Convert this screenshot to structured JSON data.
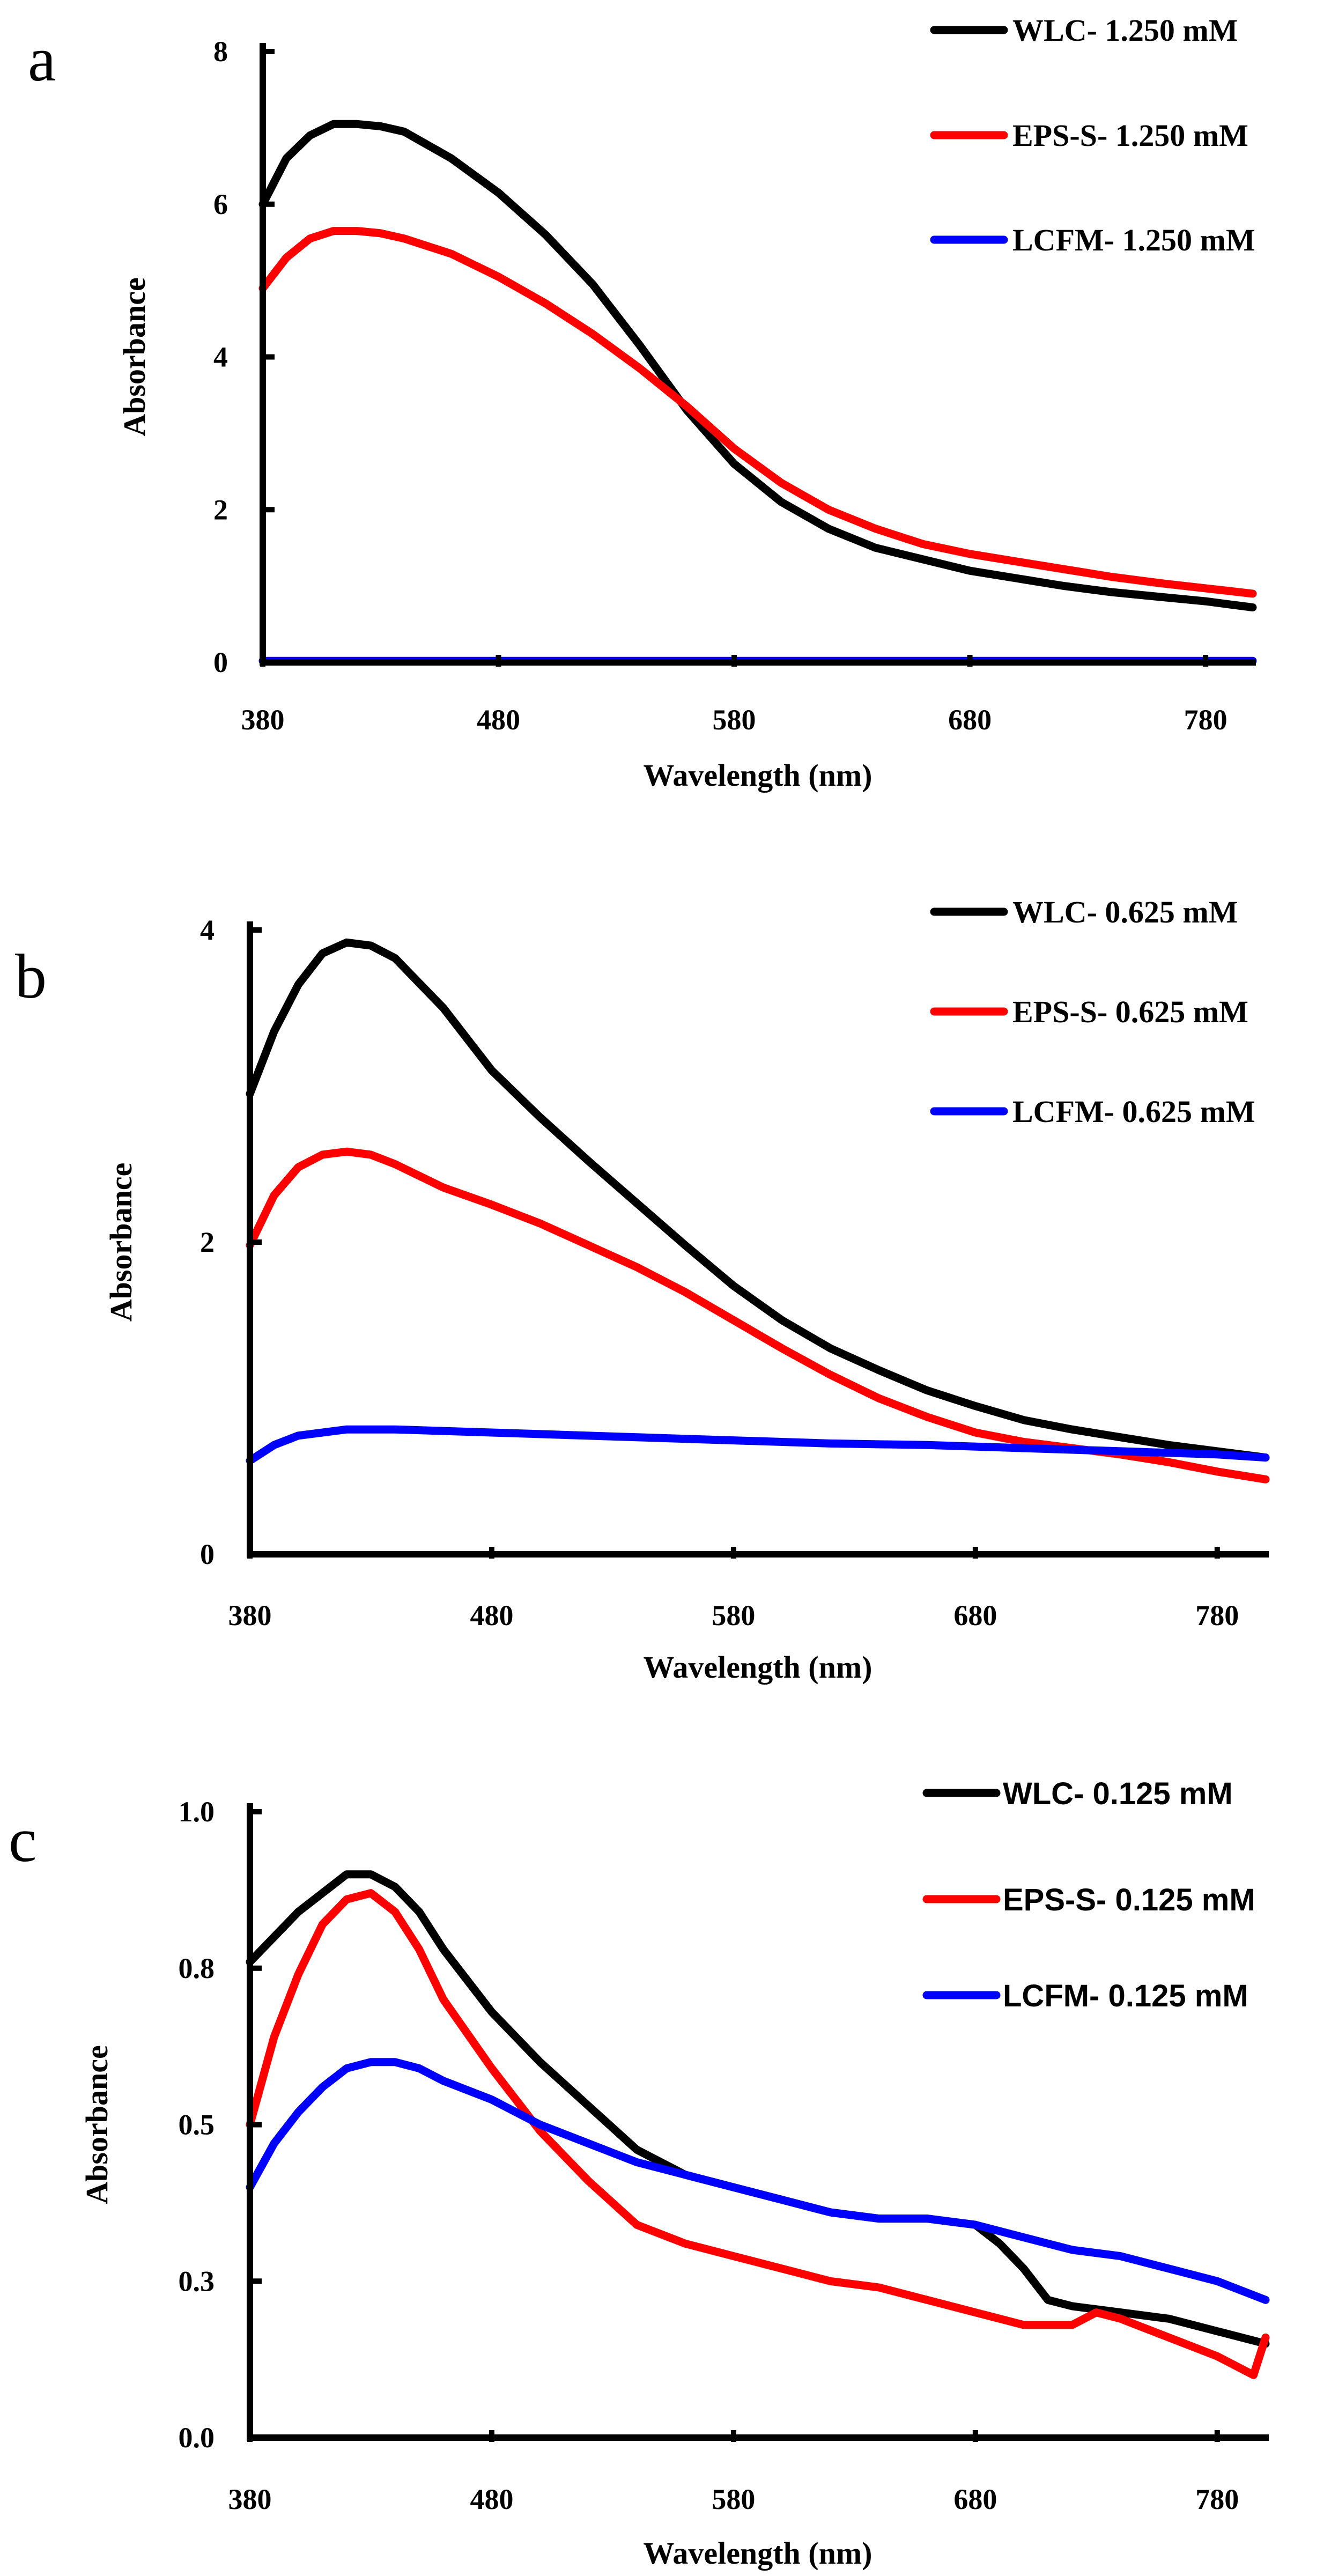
{
  "colors": {
    "WLC": "#000000",
    "EPS-S": "#ff0000",
    "LCFM": "#0000ff"
  },
  "chart_data": [
    {
      "type": "line",
      "panel": "a",
      "xlabel": "Wavelength (nm)",
      "ylabel": "Absorbance",
      "xlim": [
        380,
        800
      ],
      "ylim": [
        0,
        8
      ],
      "xticks": [
        380,
        480,
        580,
        680,
        780
      ],
      "yticks": [
        0,
        2,
        4,
        6,
        8
      ],
      "xtick_labels": [
        "380",
        "480",
        "580",
        "680",
        "780"
      ],
      "ytick_labels": [
        "0",
        "2",
        "4",
        "6",
        "8"
      ],
      "series": [
        {
          "name": "WLC- 1.250 mM",
          "key": "WLC",
          "x": [
            380,
            390,
            400,
            410,
            420,
            430,
            440,
            460,
            480,
            500,
            520,
            540,
            560,
            580,
            600,
            620,
            640,
            660,
            680,
            700,
            720,
            740,
            760,
            780,
            800
          ],
          "y": [
            6.0,
            6.6,
            6.9,
            7.05,
            7.05,
            7.02,
            6.95,
            6.6,
            6.15,
            5.6,
            4.95,
            4.15,
            3.3,
            2.6,
            2.1,
            1.75,
            1.5,
            1.35,
            1.2,
            1.1,
            1.0,
            0.92,
            0.86,
            0.8,
            0.72
          ]
        },
        {
          "name": "EPS-S- 1.250 mM",
          "key": "EPS-S",
          "x": [
            380,
            390,
            400,
            410,
            420,
            430,
            440,
            460,
            480,
            500,
            520,
            540,
            560,
            580,
            600,
            620,
            640,
            660,
            680,
            700,
            720,
            740,
            760,
            780,
            800
          ],
          "y": [
            4.9,
            5.3,
            5.55,
            5.65,
            5.65,
            5.62,
            5.55,
            5.35,
            5.05,
            4.7,
            4.3,
            3.85,
            3.35,
            2.8,
            2.35,
            2.0,
            1.75,
            1.55,
            1.42,
            1.32,
            1.22,
            1.12,
            1.04,
            0.97,
            0.9
          ]
        },
        {
          "name": "LCFM- 1.250 mM",
          "key": "LCFM",
          "x": [
            380,
            480,
            580,
            680,
            780,
            800
          ],
          "y": [
            0.02,
            0.02,
            0.02,
            0.02,
            0.02,
            0.02
          ]
        }
      ]
    },
    {
      "type": "line",
      "panel": "b",
      "xlabel": "Wavelength (nm)",
      "ylabel": "Absorbance",
      "xlim": [
        380,
        800
      ],
      "ylim": [
        0,
        4
      ],
      "xticks": [
        380,
        480,
        580,
        680,
        780
      ],
      "yticks": [
        0,
        2,
        4
      ],
      "xtick_labels": [
        "380",
        "480",
        "580",
        "680",
        "780"
      ],
      "ytick_labels": [
        "0",
        "2",
        "4"
      ],
      "series": [
        {
          "name": "WLC- 0.625 mM",
          "key": "WLC",
          "x": [
            380,
            390,
            400,
            410,
            420,
            430,
            440,
            460,
            480,
            500,
            520,
            540,
            560,
            580,
            600,
            620,
            640,
            660,
            680,
            700,
            720,
            740,
            760,
            780,
            800
          ],
          "y": [
            2.95,
            3.35,
            3.65,
            3.85,
            3.92,
            3.9,
            3.82,
            3.5,
            3.1,
            2.8,
            2.52,
            2.25,
            1.98,
            1.72,
            1.5,
            1.32,
            1.18,
            1.05,
            0.95,
            0.86,
            0.8,
            0.75,
            0.7,
            0.66,
            0.62
          ]
        },
        {
          "name": "EPS-S- 0.625 mM",
          "key": "EPS-S",
          "x": [
            380,
            390,
            400,
            410,
            420,
            430,
            440,
            460,
            480,
            500,
            520,
            540,
            560,
            580,
            600,
            620,
            640,
            660,
            680,
            700,
            720,
            740,
            760,
            780,
            800
          ],
          "y": [
            1.98,
            2.3,
            2.48,
            2.56,
            2.58,
            2.56,
            2.5,
            2.35,
            2.24,
            2.12,
            1.98,
            1.84,
            1.68,
            1.5,
            1.32,
            1.15,
            1.0,
            0.88,
            0.78,
            0.72,
            0.68,
            0.64,
            0.59,
            0.53,
            0.48
          ]
        },
        {
          "name": "LCFM- 0.625 mM",
          "key": "LCFM",
          "x": [
            380,
            390,
            400,
            420,
            440,
            460,
            480,
            500,
            540,
            580,
            620,
            660,
            700,
            740,
            780,
            800
          ],
          "y": [
            0.6,
            0.7,
            0.76,
            0.8,
            0.8,
            0.79,
            0.78,
            0.77,
            0.75,
            0.73,
            0.71,
            0.7,
            0.68,
            0.66,
            0.64,
            0.62
          ]
        }
      ]
    },
    {
      "type": "line",
      "panel": "c",
      "xlabel": "Wavelength (nm)",
      "ylabel": "Absorbance",
      "xlim": [
        380,
        800
      ],
      "ylim": [
        0,
        1.0
      ],
      "xticks": [
        380,
        480,
        580,
        680,
        780
      ],
      "yticks": [
        0.0,
        0.25,
        0.5,
        0.75,
        1.0
      ],
      "xtick_labels": [
        "380",
        "480",
        "580",
        "680",
        "780"
      ],
      "ytick_labels": [
        "0.0",
        "0.3",
        "0.5",
        "0.8",
        "1.0"
      ],
      "series": [
        {
          "name": "WLC- 0.125 mM",
          "key": "WLC",
          "x": [
            380,
            390,
            400,
            410,
            420,
            430,
            440,
            450,
            460,
            480,
            500,
            520,
            540,
            560,
            580,
            600,
            620,
            640,
            660,
            680,
            690,
            700,
            710,
            720,
            740,
            760,
            780,
            800
          ],
          "y": [
            0.76,
            0.8,
            0.84,
            0.87,
            0.9,
            0.9,
            0.88,
            0.84,
            0.78,
            0.68,
            0.6,
            0.53,
            0.46,
            0.42,
            0.4,
            0.38,
            0.36,
            0.35,
            0.35,
            0.34,
            0.31,
            0.27,
            0.22,
            0.21,
            0.2,
            0.19,
            0.17,
            0.15
          ]
        },
        {
          "name": "EPS-S- 0.125 mM",
          "key": "EPS-S",
          "x": [
            380,
            390,
            400,
            410,
            420,
            430,
            440,
            450,
            460,
            480,
            500,
            520,
            540,
            560,
            580,
            600,
            620,
            640,
            660,
            680,
            700,
            720,
            730,
            740,
            760,
            780,
            795,
            800
          ],
          "y": [
            0.5,
            0.64,
            0.74,
            0.82,
            0.86,
            0.87,
            0.84,
            0.78,
            0.7,
            0.59,
            0.49,
            0.41,
            0.34,
            0.31,
            0.29,
            0.27,
            0.25,
            0.24,
            0.22,
            0.2,
            0.18,
            0.18,
            0.2,
            0.19,
            0.16,
            0.13,
            0.1,
            0.16
          ]
        },
        {
          "name": "LCFM- 0.125 mM",
          "key": "LCFM",
          "x": [
            380,
            390,
            400,
            410,
            420,
            430,
            440,
            450,
            460,
            480,
            500,
            520,
            540,
            560,
            580,
            600,
            620,
            640,
            660,
            680,
            700,
            720,
            740,
            760,
            780,
            800
          ],
          "y": [
            0.4,
            0.47,
            0.52,
            0.56,
            0.59,
            0.6,
            0.6,
            0.59,
            0.57,
            0.54,
            0.5,
            0.47,
            0.44,
            0.42,
            0.4,
            0.38,
            0.36,
            0.35,
            0.35,
            0.34,
            0.32,
            0.3,
            0.29,
            0.27,
            0.25,
            0.22
          ]
        }
      ]
    }
  ]
}
